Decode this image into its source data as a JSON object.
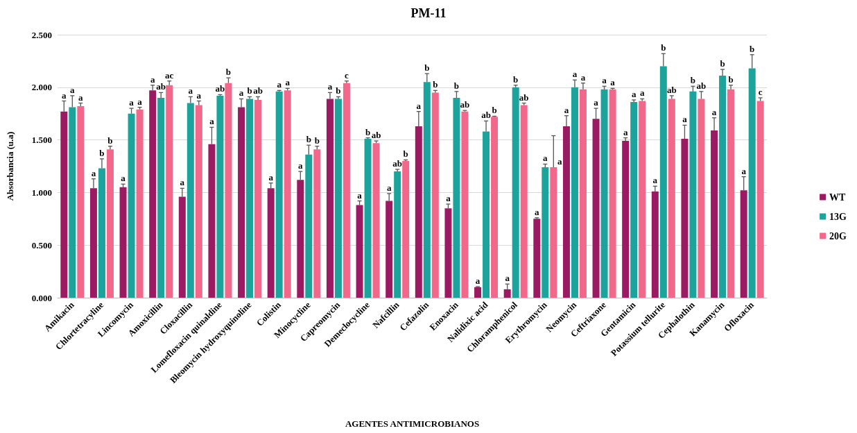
{
  "chart_data": {
    "type": "bar",
    "title": "PM-11",
    "xlabel": "AGENTES ANTIMICROBIANOS",
    "ylabel": "Absorbancia (u.a)",
    "categories": [
      "Amikacin",
      "Chlortetracyline",
      "Lincomycin",
      "Amoxicillin",
      "Cloxacillin",
      "Lomefloxacin quinaldine",
      "Bleomycin hydroxyquinoline",
      "Colistin",
      "Minocycline",
      "Capreomycin",
      "Demeclocycline",
      "Nafcillin",
      "Cefazolin",
      "Enoxacin",
      "Nalidixic acid",
      "Chloramphenicol",
      "Erythromycin",
      "Neomycin",
      "Ceftriaxone",
      "Gentamicin",
      "Potassium tellurite",
      "Cephalothin",
      "Kanamycin",
      "Ofloxacin"
    ],
    "series": [
      {
        "name": "WT",
        "color": "#9b1b62",
        "values": [
          1.77,
          1.04,
          1.05,
          1.97,
          0.96,
          1.46,
          1.81,
          1.04,
          1.12,
          1.89,
          0.88,
          0.92,
          1.63,
          0.85,
          0.1,
          0.08,
          0.75,
          1.63,
          1.7,
          1.49,
          1.01,
          1.51,
          1.59,
          1.02
        ],
        "errors": [
          0.1,
          0.09,
          0.03,
          0.05,
          0.08,
          0.16,
          0.08,
          0.05,
          0.08,
          0.06,
          0.04,
          0.07,
          0.14,
          0.04,
          0.005,
          0.05,
          0.01,
          0.1,
          0.1,
          0.03,
          0.05,
          0.13,
          0.12,
          0.13
        ],
        "value_labels": [
          "a",
          "a",
          "a",
          "a",
          "a",
          "a",
          "a",
          "a",
          "a",
          "a",
          "a",
          "a",
          "a",
          "a",
          "a",
          "a",
          "a",
          "a",
          "a",
          "a",
          "a",
          "a",
          "a",
          "a"
        ]
      },
      {
        "name": "13G",
        "color": "#1ba39c",
        "values": [
          1.81,
          1.23,
          1.75,
          1.9,
          1.85,
          1.92,
          1.89,
          1.96,
          1.36,
          1.89,
          1.51,
          1.2,
          2.05,
          1.9,
          1.58,
          2.0,
          1.24,
          2.0,
          1.98,
          1.86,
          2.2,
          1.96,
          2.11,
          2.18
        ],
        "errors": [
          0.11,
          0.09,
          0.05,
          0.05,
          0.06,
          0.01,
          0.02,
          0.01,
          0.09,
          0.02,
          0.01,
          0.02,
          0.08,
          0.06,
          0.1,
          0.02,
          0.03,
          0.07,
          0.03,
          0.02,
          0.12,
          0.05,
          0.06,
          0.13
        ],
        "value_labels": [
          "a",
          "b",
          "a",
          "ab",
          "a",
          "ab",
          "b",
          "a",
          "b",
          "b",
          "b",
          "ab",
          "b",
          "b",
          "ab",
          "b",
          "a",
          "a",
          "a",
          "a",
          "b",
          "b",
          "b",
          "b"
        ]
      },
      {
        "name": "20G",
        "color": "#f2688a",
        "values": [
          1.82,
          1.41,
          1.79,
          2.02,
          1.83,
          2.04,
          1.88,
          1.97,
          1.41,
          2.04,
          1.47,
          1.3,
          1.95,
          1.77,
          1.72,
          1.83,
          1.24,
          1.98,
          1.98,
          1.87,
          1.89,
          1.89,
          1.98,
          1.87
        ],
        "errors": [
          0.03,
          0.03,
          0.02,
          0.04,
          0.04,
          0.05,
          0.03,
          0.02,
          0.03,
          0.02,
          0.02,
          0.01,
          0.02,
          0.01,
          0.005,
          0.02,
          0.3,
          0.06,
          0.01,
          0.02,
          0.03,
          0.07,
          0.04,
          0.03
        ],
        "value_labels": [
          "a",
          "b",
          "a",
          "ac",
          "a",
          "b",
          "ab",
          "a",
          "b",
          "c",
          "ab",
          "b",
          "b",
          "ab",
          "b",
          "ab",
          "a",
          "a",
          "a",
          "a",
          "ab",
          "ab",
          "b",
          "c"
        ]
      }
    ],
    "ylim": [
      0,
      2.5
    ],
    "yticks": [
      {
        "value": 0,
        "label": "0.000"
      },
      {
        "value": 0.5,
        "label": "0.500"
      },
      {
        "value": 1,
        "label": "1.000"
      },
      {
        "value": 1.5,
        "label": "1.500"
      },
      {
        "value": 2,
        "label": "2.000"
      },
      {
        "value": 2.5,
        "label": "2.500"
      }
    ],
    "grid": "y",
    "legend": "right"
  }
}
